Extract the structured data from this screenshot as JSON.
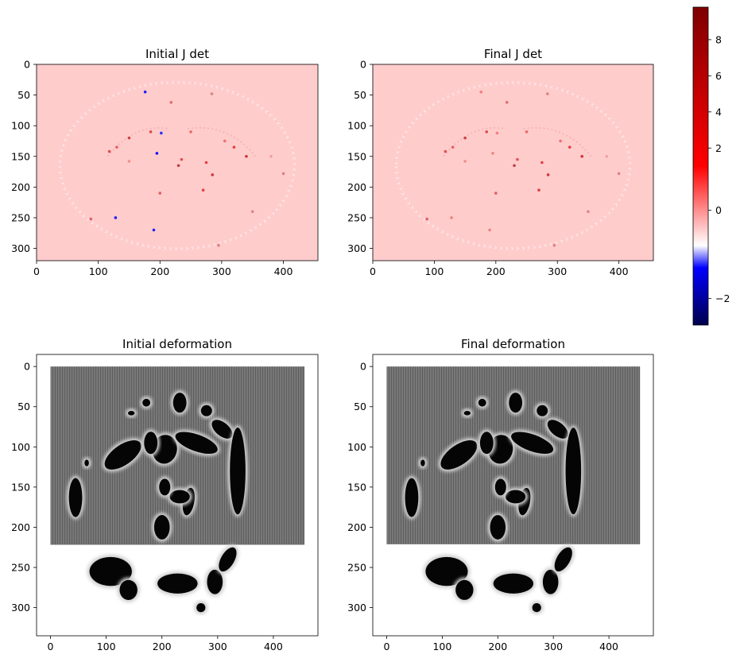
{
  "chart_data": [
    {
      "type": "heatmap",
      "title": "Initial J det",
      "x_ticks": [
        0,
        100,
        200,
        300,
        400
      ],
      "y_ticks": [
        0,
        50,
        100,
        150,
        200,
        250,
        300
      ],
      "xlim": [
        0,
        456
      ],
      "ylim": [
        0,
        320
      ],
      "image_colormap": "seismic",
      "background_value": 1
    },
    {
      "type": "heatmap",
      "title": "Final J det",
      "x_ticks": [
        0,
        100,
        200,
        300,
        400
      ],
      "y_ticks": [
        0,
        50,
        100,
        150,
        200,
        250,
        300
      ],
      "xlim": [
        0,
        456
      ],
      "ylim": [
        0,
        320
      ],
      "image_colormap": "seismic",
      "background_value": 1
    },
    {
      "type": "heatmap",
      "title": "Initial deformation",
      "x_ticks": [
        0,
        100,
        200,
        300,
        400
      ],
      "y_ticks": [
        0,
        50,
        100,
        150,
        200,
        250,
        300
      ],
      "xlim": [
        -25,
        480
      ],
      "ylim": [
        -15,
        335
      ],
      "image_colormap": "gray"
    },
    {
      "type": "heatmap",
      "title": "Final deformation",
      "x_ticks": [
        0,
        100,
        200,
        300,
        400
      ],
      "y_ticks": [
        0,
        50,
        100,
        150,
        200,
        250,
        300
      ],
      "xlim": [
        -25,
        480
      ],
      "ylim": [
        -15,
        335
      ],
      "image_colormap": "gray"
    }
  ],
  "colorbar": {
    "ticks": [
      8,
      6,
      4,
      2,
      0,
      -2
    ],
    "range": [
      -2.6,
      9.8
    ],
    "stops": [
      "#00004c",
      "#0000ff",
      "#ffffff",
      "#ff0000",
      "#7f0000"
    ]
  }
}
